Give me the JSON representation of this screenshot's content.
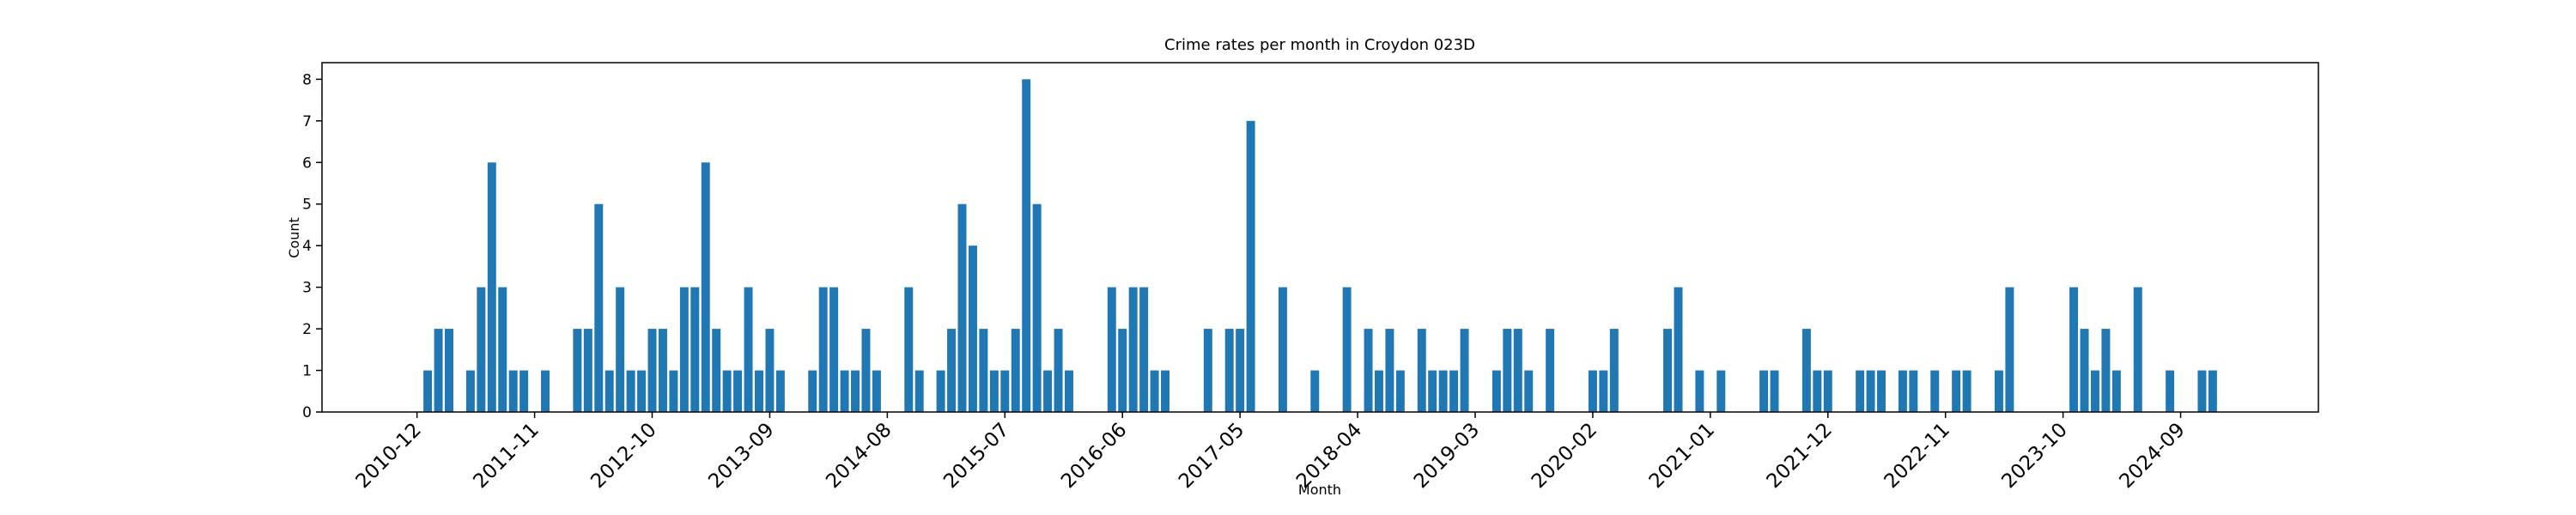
{
  "chart_data": {
    "type": "bar",
    "title": "Crime rates per month in Croydon 023D",
    "xlabel": "Month",
    "ylabel": "Count",
    "color": "#1f77b4",
    "categories": [
      "2010-12",
      null,
      null,
      null,
      null,
      null,
      null,
      null,
      null,
      null,
      null,
      "2011-11",
      null,
      null,
      null,
      null,
      null,
      null,
      null,
      null,
      null,
      null,
      "2012-10",
      null,
      null,
      null,
      null,
      null,
      null,
      null,
      null,
      null,
      null,
      "2013-09",
      null,
      null,
      null,
      null,
      null,
      null,
      null,
      null,
      null,
      null,
      "2014-08",
      null,
      null,
      null,
      null,
      null,
      null,
      null,
      null,
      null,
      null,
      "2015-07",
      null,
      null,
      null,
      null,
      null,
      null,
      null,
      null,
      null,
      null,
      "2016-06",
      null,
      null,
      null,
      null,
      null,
      null,
      null,
      null,
      null,
      null,
      "2017-05",
      null,
      null,
      null,
      null,
      null,
      null,
      null,
      null,
      null,
      null,
      "2018-04",
      null,
      null,
      null,
      null,
      null,
      null,
      null,
      null,
      null,
      null,
      "2019-03",
      null,
      null,
      null,
      null,
      null,
      null,
      null,
      null,
      null,
      null,
      "2020-02",
      null,
      null,
      null,
      null,
      null,
      null,
      null,
      null,
      null,
      null,
      "2021-01",
      null,
      null,
      null,
      null,
      null,
      null,
      null,
      null,
      null,
      null,
      "2021-12",
      null,
      null,
      null,
      null,
      null,
      null,
      null,
      null,
      null,
      null,
      "2022-11",
      null,
      null,
      null,
      null,
      null,
      null,
      null,
      null,
      null,
      null,
      "2023-10",
      null,
      null,
      null,
      null,
      null,
      null,
      null,
      null,
      null,
      null,
      "2024-09",
      null,
      null,
      null,
      null
    ],
    "values": [
      0,
      1,
      2,
      2,
      0,
      1,
      3,
      6,
      3,
      1,
      1,
      0,
      1,
      0,
      0,
      2,
      2,
      5,
      1,
      3,
      1,
      1,
      2,
      2,
      1,
      3,
      3,
      6,
      2,
      1,
      1,
      3,
      1,
      2,
      1,
      0,
      0,
      1,
      3,
      3,
      1,
      1,
      2,
      1,
      0,
      0,
      3,
      1,
      0,
      1,
      2,
      5,
      4,
      2,
      1,
      1,
      2,
      8,
      5,
      1,
      2,
      1,
      0,
      0,
      0,
      3,
      2,
      3,
      3,
      1,
      1,
      0,
      0,
      0,
      2,
      0,
      2,
      2,
      7,
      0,
      0,
      3,
      0,
      0,
      1,
      0,
      0,
      3,
      0,
      2,
      1,
      2,
      1,
      0,
      2,
      1,
      1,
      1,
      2,
      0,
      0,
      1,
      2,
      2,
      1,
      0,
      2,
      0,
      0,
      0,
      1,
      1,
      2,
      0,
      0,
      0,
      0,
      2,
      3,
      0,
      1,
      0,
      1,
      0,
      0,
      0,
      1,
      1,
      0,
      0,
      2,
      1,
      1,
      0,
      0,
      1,
      1,
      1,
      0,
      1,
      1,
      0,
      1,
      0,
      1,
      1,
      0,
      0,
      1,
      3,
      0,
      0,
      0,
      0,
      0,
      3,
      2,
      1,
      2,
      1,
      0,
      3,
      0,
      0,
      1,
      0,
      0,
      1,
      1,
      0
    ],
    "ylim": [
      0,
      8.4
    ],
    "yticks": [
      0,
      1,
      2,
      3,
      4,
      5,
      6,
      7,
      8
    ]
  }
}
